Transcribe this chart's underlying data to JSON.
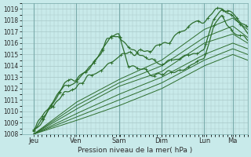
{
  "bg_color": "#c8eaea",
  "grid_color": "#a8c8c8",
  "line_color": "#2d6e2d",
  "xlabel_text": "Pression niveau de la mer( hPa )",
  "ylim": [
    1008,
    1019.5
  ],
  "yticks": [
    1008,
    1009,
    1010,
    1011,
    1012,
    1013,
    1014,
    1015,
    1016,
    1017,
    1018,
    1019
  ],
  "xlim": [
    0.0,
    5.3
  ],
  "xtick_positions": [
    0.28,
    1.28,
    2.28,
    3.28,
    4.28,
    4.95
  ],
  "xtick_labels": [
    "Jeu",
    "Ven",
    "Sam",
    "Dim",
    "Lun",
    "Ma"
  ],
  "vlines": [
    0.28,
    1.28,
    2.28,
    3.28,
    4.28,
    4.95
  ],
  "num_points": 200,
  "seed": 17
}
